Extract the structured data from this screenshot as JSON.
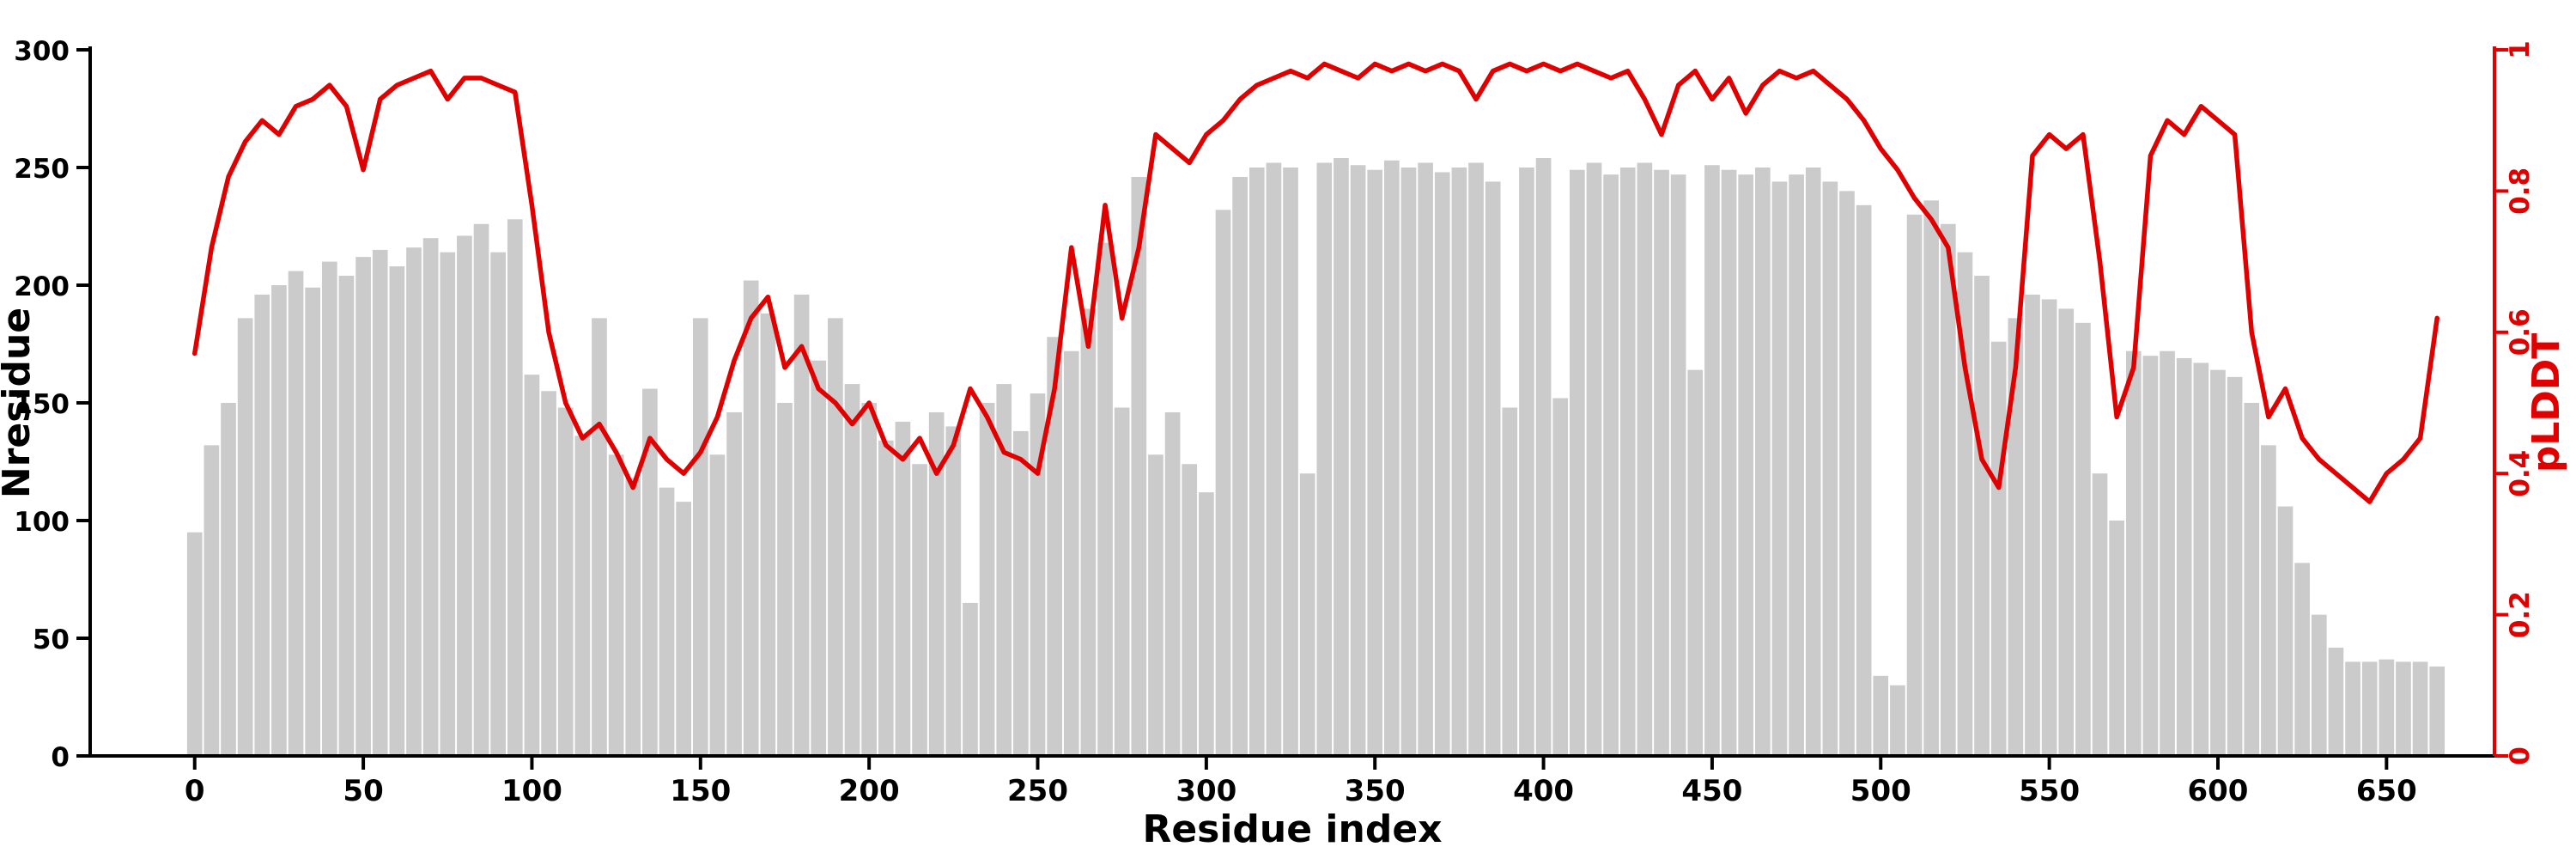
{
  "figure": {
    "background": "#ffffff"
  },
  "chart_data": {
    "type": "bar+line",
    "title": "",
    "xlabel": "Residue index",
    "ylabel_left": "Nresidue",
    "ylabel_right": "pLDDT",
    "grid": false,
    "legend": "none",
    "xlim": [
      -31,
      682
    ],
    "ylim_left": [
      0,
      300
    ],
    "ylim_right": [
      0,
      1
    ],
    "x_ticks": [
      0,
      50,
      100,
      150,
      200,
      250,
      300,
      350,
      400,
      450,
      500,
      550,
      600,
      650
    ],
    "y_ticks_left": [
      0,
      50,
      100,
      150,
      200,
      250,
      300
    ],
    "y_ticks_right": [
      0,
      0.2,
      0.4,
      0.6,
      0.8,
      1
    ],
    "y_ticks_right_labels": [
      "0",
      "0.2",
      "0.4",
      "0.6",
      "0.8",
      "1"
    ],
    "colors": {
      "bar_fill": "#cbcbcb",
      "line": "#e00000",
      "axis": "#000000",
      "right_axis": "#e00000"
    },
    "x": [
      0,
      5,
      10,
      15,
      20,
      25,
      30,
      35,
      40,
      45,
      50,
      55,
      60,
      65,
      70,
      75,
      80,
      85,
      90,
      95,
      100,
      105,
      110,
      115,
      120,
      125,
      130,
      135,
      140,
      145,
      150,
      155,
      160,
      165,
      170,
      175,
      180,
      185,
      190,
      195,
      200,
      205,
      210,
      215,
      220,
      225,
      230,
      235,
      240,
      245,
      250,
      255,
      260,
      265,
      270,
      275,
      280,
      285,
      290,
      295,
      300,
      305,
      310,
      315,
      320,
      325,
      330,
      335,
      340,
      345,
      350,
      355,
      360,
      365,
      370,
      375,
      380,
      385,
      390,
      395,
      400,
      405,
      410,
      415,
      420,
      425,
      430,
      435,
      440,
      445,
      450,
      455,
      460,
      465,
      470,
      475,
      480,
      485,
      490,
      495,
      500,
      505,
      510,
      515,
      520,
      525,
      530,
      535,
      540,
      545,
      550,
      555,
      560,
      565,
      570,
      575,
      580,
      585,
      590,
      595,
      600,
      605,
      610,
      615,
      620,
      625,
      630,
      635,
      640,
      645,
      650,
      655,
      660,
      665
    ],
    "series": [
      {
        "name": "Nresidue",
        "type": "bar",
        "axis": "left",
        "values": [
          95,
          132,
          150,
          186,
          196,
          200,
          206,
          199,
          210,
          204,
          212,
          215,
          208,
          216,
          220,
          214,
          221,
          226,
          214,
          228,
          162,
          155,
          148,
          136,
          186,
          128,
          118,
          156,
          114,
          108,
          186,
          128,
          146,
          202,
          188,
          150,
          196,
          168,
          186,
          158,
          150,
          134,
          142,
          124,
          146,
          140,
          65,
          150,
          158,
          138,
          154,
          178,
          172,
          190,
          218,
          148,
          246,
          128,
          146,
          124,
          112,
          232,
          246,
          250,
          252,
          250,
          120,
          252,
          254,
          251,
          249,
          253,
          250,
          252,
          248,
          250,
          252,
          244,
          148,
          250,
          254,
          152,
          249,
          252,
          247,
          250,
          252,
          249,
          247,
          164,
          251,
          249,
          247,
          250,
          244,
          247,
          250,
          244,
          240,
          234,
          34,
          30,
          230,
          236,
          226,
          214,
          204,
          176,
          186,
          196,
          194,
          190,
          184,
          120,
          100,
          172,
          170,
          172,
          169,
          167,
          164,
          161,
          150,
          132,
          106,
          82,
          60,
          46,
          40,
          40,
          41,
          40,
          40,
          38
        ]
      },
      {
        "name": "pLDDT",
        "type": "line",
        "axis": "right",
        "values": [
          0.57,
          0.72,
          0.82,
          0.87,
          0.9,
          0.88,
          0.92,
          0.93,
          0.95,
          0.92,
          0.83,
          0.93,
          0.95,
          0.96,
          0.97,
          0.93,
          0.96,
          0.96,
          0.95,
          0.94,
          0.78,
          0.6,
          0.5,
          0.45,
          0.47,
          0.43,
          0.38,
          0.45,
          0.42,
          0.4,
          0.43,
          0.48,
          0.56,
          0.62,
          0.65,
          0.55,
          0.58,
          0.52,
          0.5,
          0.47,
          0.5,
          0.44,
          0.42,
          0.45,
          0.4,
          0.44,
          0.52,
          0.48,
          0.43,
          0.42,
          0.4,
          0.52,
          0.72,
          0.58,
          0.78,
          0.62,
          0.72,
          0.88,
          0.86,
          0.84,
          0.88,
          0.9,
          0.93,
          0.95,
          0.96,
          0.97,
          0.96,
          0.98,
          0.97,
          0.96,
          0.98,
          0.97,
          0.98,
          0.97,
          0.98,
          0.97,
          0.93,
          0.97,
          0.98,
          0.97,
          0.98,
          0.97,
          0.98,
          0.97,
          0.96,
          0.97,
          0.93,
          0.88,
          0.95,
          0.97,
          0.93,
          0.96,
          0.91,
          0.95,
          0.97,
          0.96,
          0.97,
          0.95,
          0.93,
          0.9,
          0.86,
          0.83,
          0.79,
          0.76,
          0.72,
          0.55,
          0.42,
          0.38,
          0.55,
          0.85,
          0.88,
          0.86,
          0.88,
          0.7,
          0.48,
          0.55,
          0.85,
          0.9,
          0.88,
          0.92,
          0.9,
          0.88,
          0.6,
          0.48,
          0.52,
          0.45,
          0.42,
          0.4,
          0.38,
          0.36,
          0.4,
          0.42,
          0.45,
          0.62
        ]
      }
    ]
  }
}
